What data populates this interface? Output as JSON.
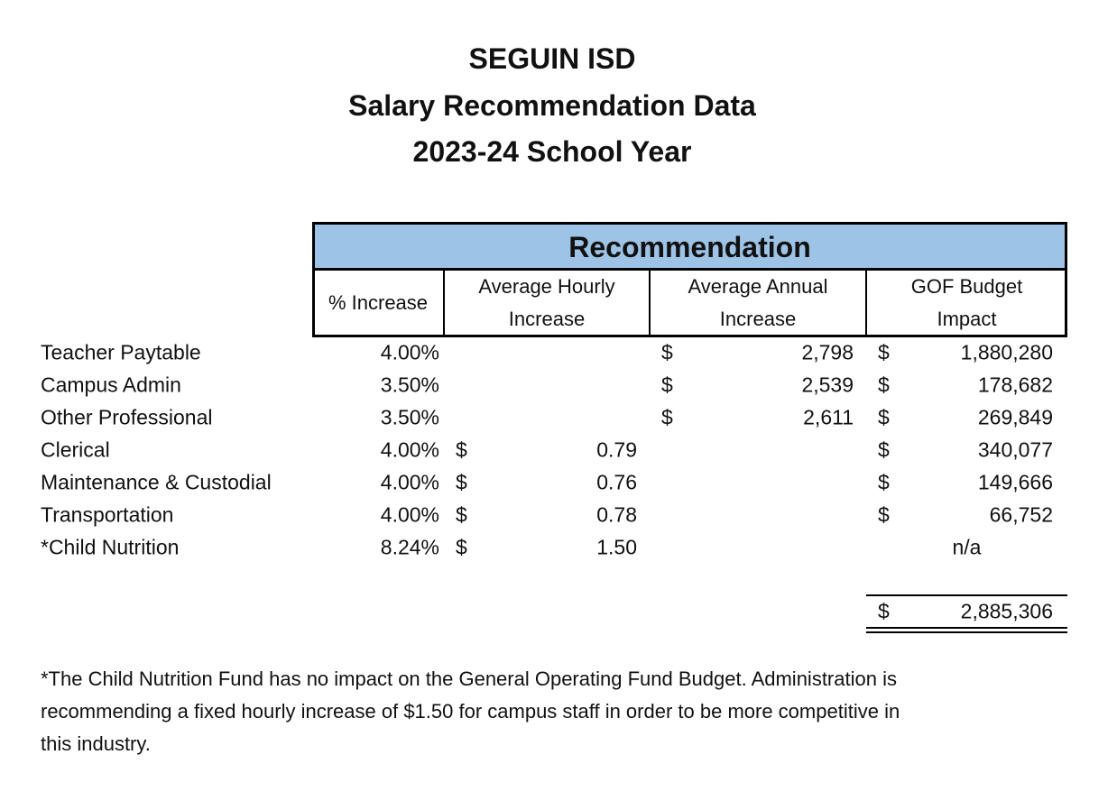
{
  "header": {
    "lines": [
      "SEGUIN ISD",
      "Salary Recommendation Data",
      "2023-24 School Year"
    ]
  },
  "table": {
    "group_title": "Recommendation",
    "columns": [
      "% Increase",
      "Average Hourly Increase",
      "Average Annual Increase",
      "GOF Budget Impact"
    ],
    "rows": [
      {
        "label": "Teacher Paytable",
        "pct": "4.00%",
        "annual_cur": "$",
        "annual": "2,798",
        "gof_cur": "$",
        "gof": "1,880,280"
      },
      {
        "label": "Campus Admin",
        "pct": "3.50%",
        "annual_cur": "$",
        "annual": "2,539",
        "gof_cur": "$",
        "gof": "178,682"
      },
      {
        "label": "Other Professional",
        "pct": "3.50%",
        "annual_cur": "$",
        "annual": "2,611",
        "gof_cur": "$",
        "gof": "269,849"
      },
      {
        "label": "Clerical",
        "pct": "4.00%",
        "hourly_cur": "$",
        "hourly": "0.79",
        "gof_cur": "$",
        "gof": "340,077"
      },
      {
        "label": "Maintenance & Custodial",
        "pct": "4.00%",
        "hourly_cur": "$",
        "hourly": "0.76",
        "gof_cur": "$",
        "gof": "149,666"
      },
      {
        "label": "Transportation",
        "pct": "4.00%",
        "hourly_cur": "$",
        "hourly": "0.78",
        "gof_cur": "$",
        "gof": "66,752"
      },
      {
        "label": "*Child Nutrition",
        "pct": "8.24%",
        "hourly_cur": "$",
        "hourly": "1.50",
        "gof_na": "n/a"
      }
    ],
    "total": {
      "currency": "$",
      "value": "2,885,306"
    }
  },
  "footnote": {
    "lines": [
      "*The Child Nutrition Fund has no impact on the General Operating Fund Budget. Administration is",
      "recommending a fixed hourly increase of $1.50 for campus staff in order to be more competitive in",
      "this industry."
    ]
  }
}
